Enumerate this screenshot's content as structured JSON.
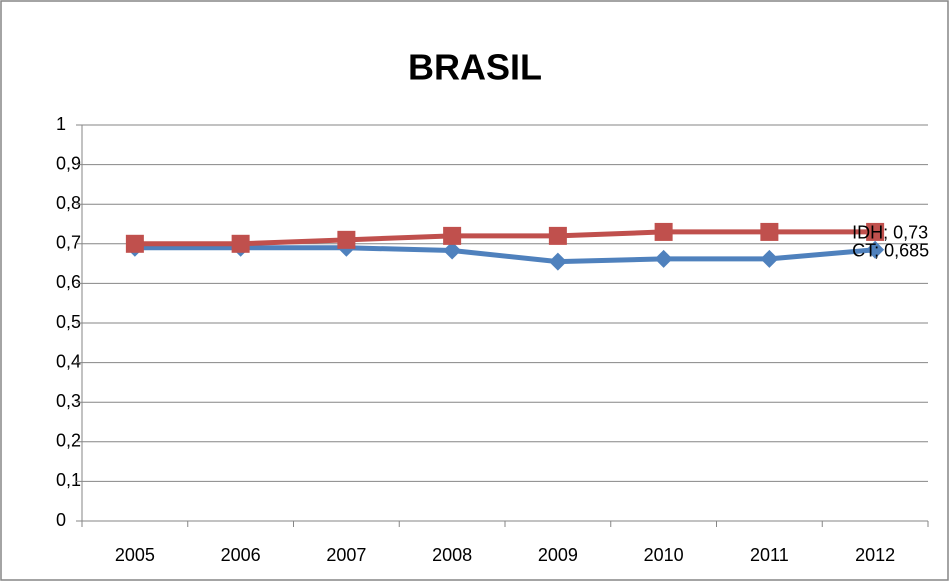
{
  "chart_data": {
    "type": "line",
    "title": "BRASIL",
    "categories": [
      "2005",
      "2006",
      "2007",
      "2008",
      "2009",
      "2010",
      "2011",
      "2012"
    ],
    "series": [
      {
        "name": "CT",
        "color": "#4f81bd",
        "marker": "diamond",
        "values": [
          0.69,
          0.69,
          0.69,
          0.683,
          0.655,
          0.662,
          0.662,
          0.685
        ],
        "value_labels": [
          null,
          null,
          null,
          null,
          null,
          null,
          null,
          "CT; 0,685"
        ]
      },
      {
        "name": "IDH",
        "color": "#c0504d",
        "marker": "square",
        "values": [
          0.7,
          0.7,
          0.71,
          0.72,
          0.72,
          0.73,
          0.73,
          0.73
        ],
        "value_labels": [
          null,
          null,
          null,
          null,
          null,
          null,
          null,
          "IDH; 0,73"
        ]
      }
    ],
    "ylim": [
      0,
      1
    ],
    "yticks": [
      0,
      {
        "value": 0.1,
        "label": "0,1"
      },
      {
        "value": 0.2,
        "label": "0,2"
      },
      {
        "value": 0.3,
        "label": "0,3"
      },
      {
        "value": 0.4,
        "label": "0,4"
      },
      {
        "value": 0.5,
        "label": "0,5"
      },
      {
        "value": 0.6,
        "label": "0,6"
      },
      {
        "value": 0.7,
        "label": "0,7"
      },
      {
        "value": 0.8,
        "label": "0,8"
      },
      {
        "value": 0.9,
        "label": "0,9"
      },
      1
    ],
    "grid": true
  }
}
